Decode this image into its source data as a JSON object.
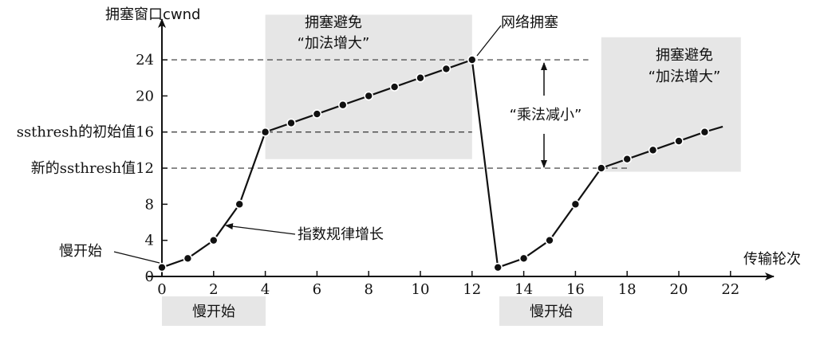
{
  "chart_data": {
    "type": "line",
    "y_axis_title": "拥塞窗口cwnd",
    "x_axis_title": "传输轮次",
    "x_ticks": [
      "0",
      "2",
      "4",
      "6",
      "8",
      "10",
      "12",
      "14",
      "16",
      "18",
      "20",
      "22"
    ],
    "y_ticks": [
      "0",
      "4",
      "8",
      "12",
      "16",
      "20",
      "24"
    ],
    "y_tick_labels": {
      "0": "0",
      "4": "4",
      "8": "8",
      "12": "新的ssthresh值12",
      "16": "ssthresh的初始值16",
      "20": "20",
      "24": "24"
    },
    "xlim": [
      0,
      23
    ],
    "ylim": [
      0,
      27
    ],
    "series": [
      {
        "values": [
          {
            "x": 0,
            "y": 1
          },
          {
            "x": 1,
            "y": 2
          },
          {
            "x": 2,
            "y": 4
          },
          {
            "x": 3,
            "y": 8
          },
          {
            "x": 4,
            "y": 16
          },
          {
            "x": 5,
            "y": 17
          },
          {
            "x": 6,
            "y": 18
          },
          {
            "x": 7,
            "y": 19
          },
          {
            "x": 8,
            "y": 20
          },
          {
            "x": 9,
            "y": 21
          },
          {
            "x": 10,
            "y": 22
          },
          {
            "x": 11,
            "y": 23
          },
          {
            "x": 12,
            "y": 24
          },
          {
            "x": 13,
            "y": 1
          },
          {
            "x": 14,
            "y": 2
          },
          {
            "x": 15,
            "y": 4
          },
          {
            "x": 16,
            "y": 8
          },
          {
            "x": 17,
            "y": 12
          },
          {
            "x": 18,
            "y": 13
          },
          {
            "x": 19,
            "y": 14
          },
          {
            "x": 20,
            "y": 15
          },
          {
            "x": 21,
            "y": 16
          }
        ],
        "tail_to": {
          "x": 21.7,
          "y": 16.6
        }
      }
    ],
    "reference_lines": [
      {
        "y": 24,
        "x_from": 0,
        "x_to": 16.5
      },
      {
        "y": 16,
        "x_from": 0,
        "x_to": 12
      },
      {
        "y": 12,
        "x_from": 0,
        "x_to": 18
      }
    ],
    "regions": [
      {
        "x_from": 4,
        "x_to": 12,
        "y_from": 13,
        "y_to": 29
      },
      {
        "x_from": 17,
        "x_to": 22.4,
        "y_from": 11.6,
        "y_to": 26.5
      }
    ],
    "annotations": {
      "congestion_avoidance_1": {
        "line1": "拥塞避免",
        "line2": "“加法增大”"
      },
      "congestion_avoidance_2": {
        "line1": "拥塞避免",
        "line2": "“加法增大”"
      },
      "network_congestion": "网络拥塞",
      "multiplicative_decrease": "“乘法减小”",
      "exponential_growth": "指数规律增长",
      "slow_start_marker": "慢开始",
      "slow_start_phase_1": "慢开始",
      "slow_start_phase_2": "慢开始"
    }
  }
}
